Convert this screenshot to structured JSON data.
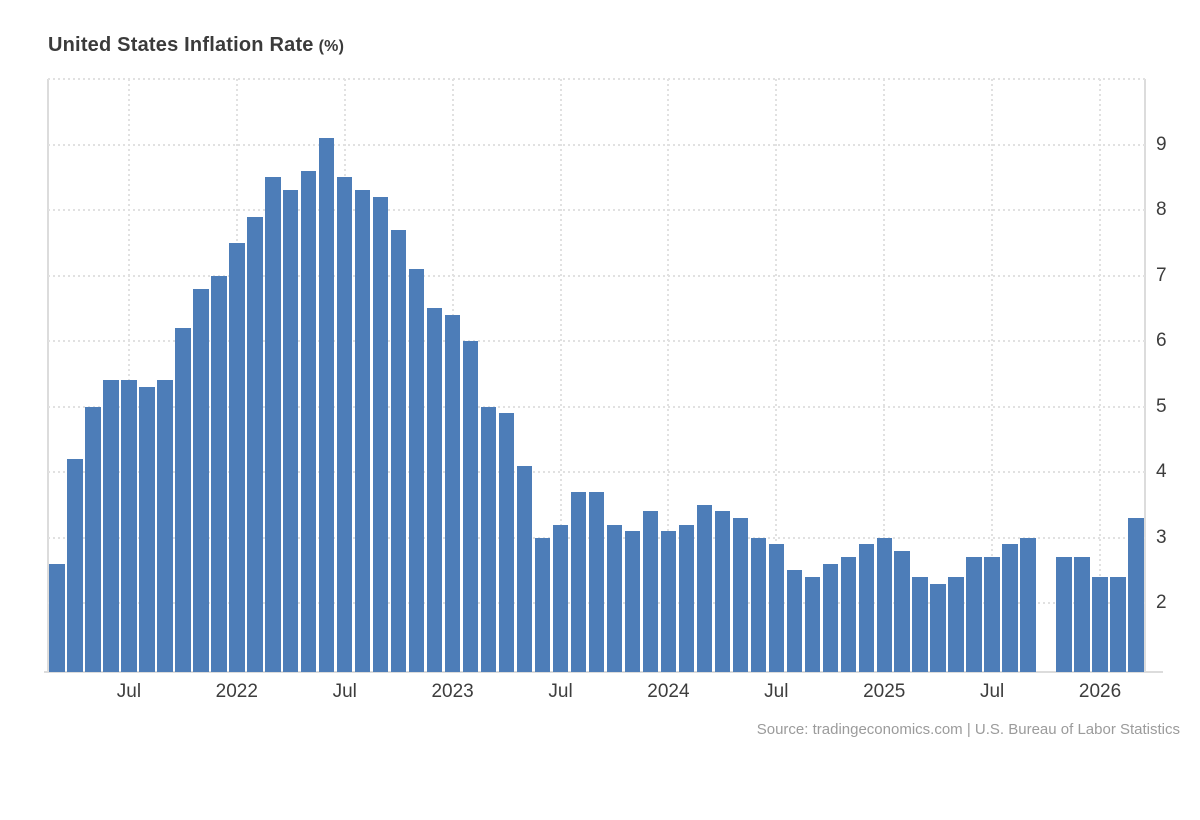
{
  "header": {
    "title": "United States Inflation Rate",
    "unit": "(%)"
  },
  "footer": {
    "source": "Source: tradingeconomics.com | U.S. Bureau of Labor Statistics"
  },
  "chart_data": {
    "type": "bar",
    "title": "United States Inflation Rate (%)",
    "value_unit": "%",
    "bar_color": "#4d7db8",
    "grid_color": "#e1e1e1",
    "axis_color": "#dcdcdc",
    "label_color": "#3d3d3d",
    "ylim": [
      0.95,
      10
    ],
    "yticks": [
      2,
      3,
      4,
      5,
      6,
      7,
      8,
      9
    ],
    "yticks_side": "right",
    "grid": "dotted",
    "legend": null,
    "months": [
      "2021-03",
      "2021-04",
      "2021-05",
      "2021-06",
      "2021-07",
      "2021-08",
      "2021-09",
      "2021-10",
      "2021-11",
      "2021-12",
      "2022-01",
      "2022-02",
      "2022-03",
      "2022-04",
      "2022-05",
      "2022-06",
      "2022-07",
      "2022-08",
      "2022-09",
      "2022-10",
      "2022-11",
      "2022-12",
      "2023-01",
      "2023-02",
      "2023-03",
      "2023-04",
      "2023-05",
      "2023-06",
      "2023-07",
      "2023-08",
      "2023-09",
      "2023-10",
      "2023-11",
      "2023-12",
      "2024-01",
      "2024-02",
      "2024-03",
      "2024-04",
      "2024-05",
      "2024-06",
      "2024-07",
      "2024-08",
      "2024-09",
      "2024-10",
      "2024-11",
      "2024-12",
      "2025-01",
      "2025-02",
      "2025-03",
      "2025-04",
      "2025-05",
      "2025-06",
      "2025-07",
      "2025-08",
      "2025-09",
      "2025-10",
      "2025-11",
      "2025-12",
      "2026-01",
      "2026-02",
      "2026-03"
    ],
    "values": [
      2.6,
      4.2,
      5.0,
      5.4,
      5.4,
      5.3,
      5.4,
      6.2,
      6.8,
      7.0,
      7.5,
      7.9,
      8.5,
      8.3,
      8.6,
      9.1,
      8.5,
      8.3,
      8.2,
      7.7,
      7.1,
      6.5,
      6.4,
      6.0,
      5.0,
      4.9,
      4.1,
      3.0,
      3.2,
      3.7,
      3.7,
      3.2,
      3.1,
      3.4,
      3.1,
      3.2,
      3.5,
      3.4,
      3.3,
      3.0,
      2.9,
      2.5,
      2.4,
      2.6,
      2.7,
      2.9,
      3.0,
      2.8,
      2.4,
      2.3,
      2.4,
      2.7,
      2.7,
      2.9,
      3.0,
      null,
      2.7,
      2.7,
      2.4,
      2.4,
      3.3
    ],
    "missing_months": [
      "2025-10"
    ],
    "xticks": [
      {
        "slot": 4,
        "label": "Jul"
      },
      {
        "slot": 10,
        "label": "2022"
      },
      {
        "slot": 16,
        "label": "Jul"
      },
      {
        "slot": 22,
        "label": "2023"
      },
      {
        "slot": 28,
        "label": "Jul"
      },
      {
        "slot": 34,
        "label": "2024"
      },
      {
        "slot": 40,
        "label": "Jul"
      },
      {
        "slot": 46,
        "label": "2025"
      },
      {
        "slot": 52,
        "label": "Jul"
      },
      {
        "slot": 58,
        "label": "2026"
      }
    ]
  }
}
